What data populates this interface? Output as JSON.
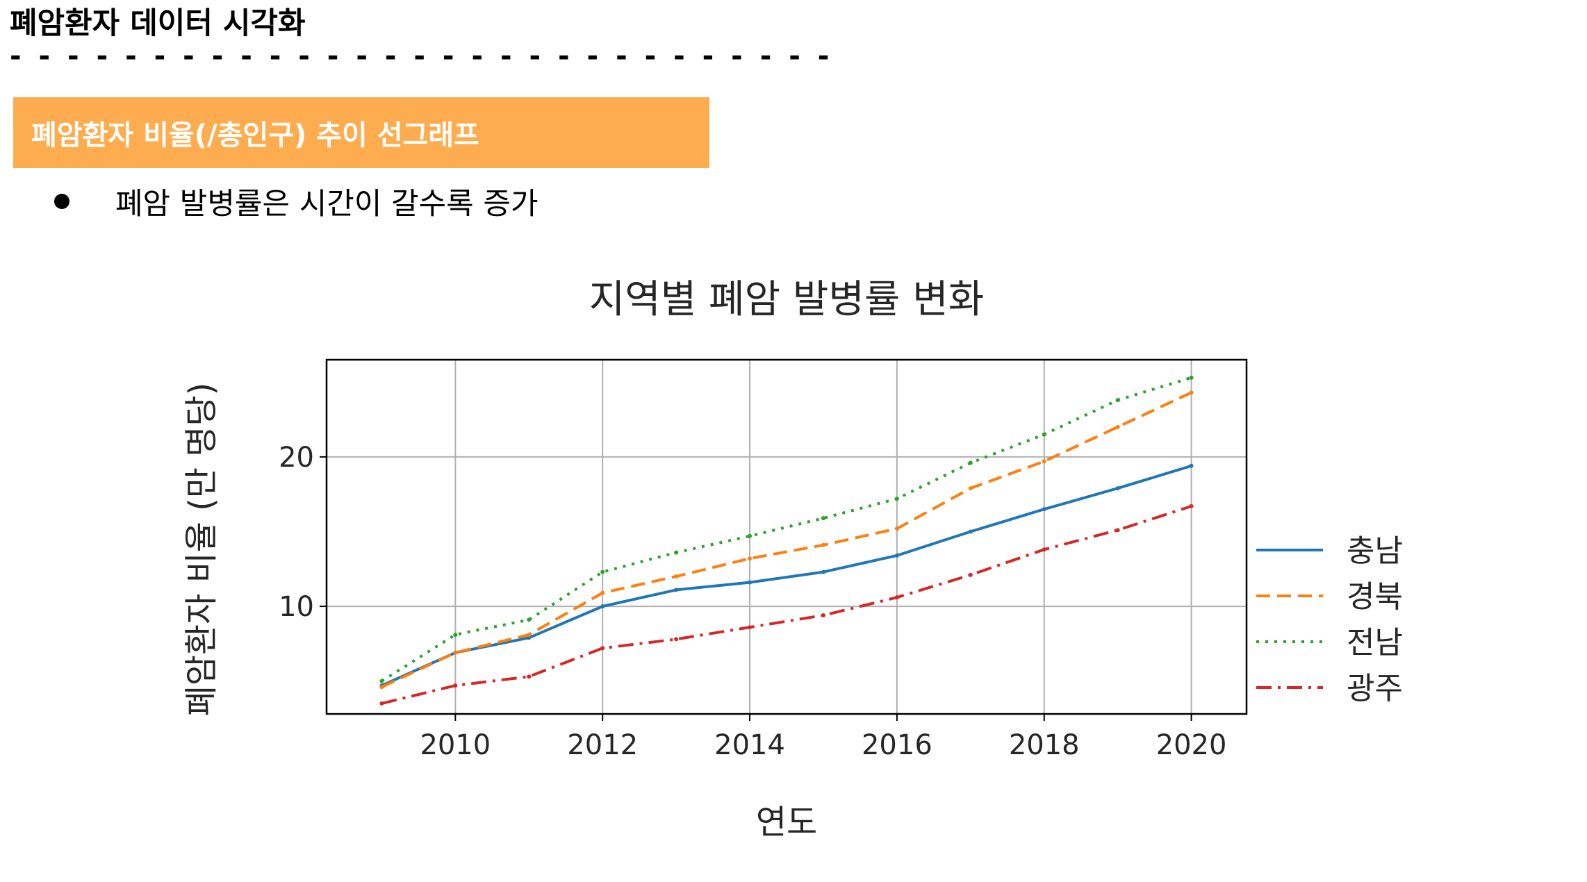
{
  "document": {
    "title": "폐암환자 데이터 시각화",
    "divider": "- - - - - - - - - - - - - - - - - - - - - - - - - - - - -",
    "section_title": "폐암환자 비율(/총인구) 추이 선그래프",
    "bullets": [
      "폐암 발병률은 시간이 갈수록 증가"
    ],
    "accent_color": "#FDAD4F"
  },
  "chart_data": {
    "type": "line",
    "title": "지역별 폐암 발병률 변화",
    "xlabel": "연도",
    "ylabel": "폐암환자 비율 (만 명당)",
    "xlim": [
      2008.25,
      2020.75
    ],
    "ylim": [
      2.8,
      26.5
    ],
    "xticks": [
      2010,
      2012,
      2014,
      2016,
      2018,
      2020
    ],
    "yticks": [
      10,
      20
    ],
    "grid": true,
    "legend_position": "outside-right",
    "x": [
      2009,
      2010,
      2011,
      2012,
      2013,
      2014,
      2015,
      2016,
      2017,
      2018,
      2019,
      2020
    ],
    "series": [
      {
        "name": "충남",
        "color": "#1f77b4",
        "dash": "solid",
        "values": [
          4.7,
          6.9,
          7.9,
          10.0,
          11.1,
          11.6,
          12.3,
          13.4,
          15.0,
          16.5,
          17.9,
          19.4
        ]
      },
      {
        "name": "경북",
        "color": "#ff7f0e",
        "dash": "dashed",
        "values": [
          4.6,
          6.9,
          8.1,
          10.9,
          12.0,
          13.2,
          14.1,
          15.2,
          17.9,
          19.7,
          22.0,
          24.3
        ]
      },
      {
        "name": "전남",
        "color": "#2ca02c",
        "dash": "dotted",
        "values": [
          5.0,
          8.1,
          9.1,
          12.3,
          13.6,
          14.7,
          15.9,
          17.2,
          19.6,
          21.5,
          23.8,
          25.3
        ]
      },
      {
        "name": "광주",
        "color": "#d62728",
        "dash": "dashdot",
        "values": [
          3.5,
          4.7,
          5.3,
          7.2,
          7.8,
          8.6,
          9.4,
          10.6,
          12.1,
          13.8,
          15.1,
          16.7
        ]
      }
    ]
  }
}
